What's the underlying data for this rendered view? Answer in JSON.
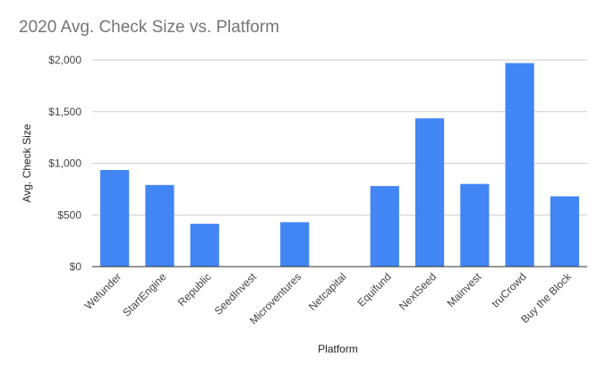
{
  "chart_data": {
    "type": "bar",
    "title": "2020 Avg. Check Size vs. Platform",
    "xlabel": "Platform",
    "ylabel": "Avg. Check Size",
    "categories": [
      "Wefunder",
      "StartEngine",
      "Republic",
      "SeedInvest",
      "Microventures",
      "Netcapital",
      "Equifund",
      "NextSeed",
      "Mainvest",
      "truCrowd",
      "Buy the Block"
    ],
    "values": [
      935,
      790,
      415,
      0,
      430,
      0,
      780,
      1435,
      800,
      1970,
      680
    ],
    "ylim": [
      0,
      2000
    ],
    "yticks": [
      0,
      500,
      1000,
      1500,
      2000
    ],
    "ytick_labels": [
      "$0",
      "$500",
      "$1,000",
      "$1,500",
      "$2,000"
    ],
    "grid": true,
    "legend": "none",
    "bar_color": "#4285f4",
    "grid_color": "#cccccc",
    "axis_color": "#333333"
  }
}
